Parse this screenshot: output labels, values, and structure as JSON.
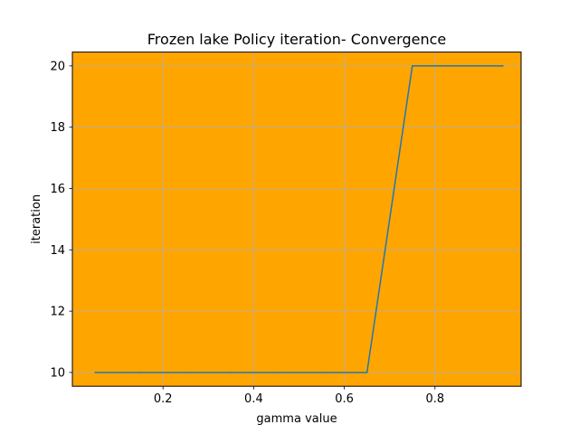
{
  "chart_data": {
    "type": "line",
    "title": "Frozen lake Policy iteration- Convergence",
    "xlabel": "gamma value",
    "ylabel": "iteration",
    "xlim": [
      0.0,
      0.99
    ],
    "ylim": [
      9.55,
      20.45
    ],
    "xticks": [
      0.2,
      0.4,
      0.6,
      0.8
    ],
    "xtick_labels": [
      "0.2",
      "0.4",
      "0.6",
      "0.8"
    ],
    "yticks": [
      10,
      12,
      14,
      16,
      18,
      20
    ],
    "ytick_labels": [
      "10",
      "12",
      "14",
      "16",
      "18",
      "20"
    ],
    "grid": true,
    "background_color": "#ffa500",
    "series": [
      {
        "color": "#1f77b4",
        "x": [
          0.05,
          0.15,
          0.25,
          0.35,
          0.45,
          0.55,
          0.65,
          0.75,
          0.85,
          0.95
        ],
        "y": [
          10,
          10,
          10,
          10,
          10,
          10,
          10,
          20,
          20,
          20
        ]
      }
    ]
  }
}
